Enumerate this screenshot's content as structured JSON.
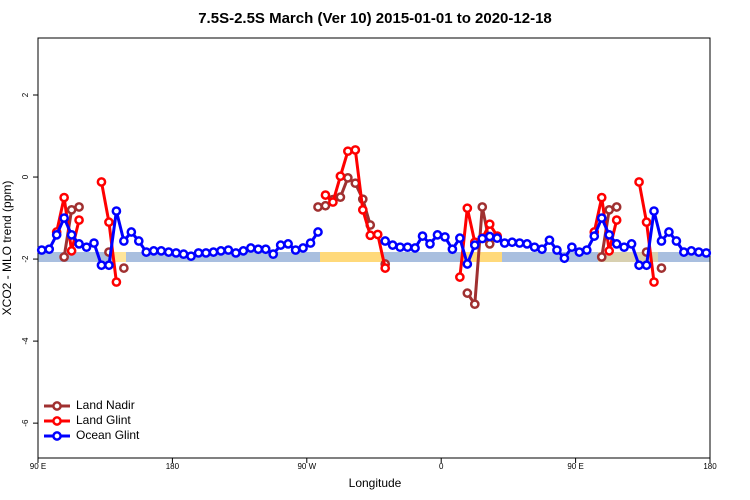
{
  "chart_data": {
    "type": "line",
    "title": "7.5S-2.5S March (Ver 10)   2015-01-01 to 2020-12-18",
    "x_label": "Longitude",
    "y_label": "XCO2 - MLO trend (ppm)",
    "x": [
      92.5,
      97.5,
      102.5,
      107.5,
      112.5,
      117.5,
      122.5,
      127.5,
      132.5,
      137.5,
      142.5,
      147.5,
      152.5,
      157.5,
      162.5,
      167.5,
      172.5,
      177.5,
      182.5,
      187.5,
      192.5,
      197.5,
      202.5,
      207.5,
      212.5,
      217.5,
      222.5,
      227.5,
      232.5,
      237.5,
      242.5,
      247.5,
      252.5,
      257.5,
      262.5,
      267.5,
      272.5,
      277.5,
      282.5,
      287.5,
      292.5,
      297.5,
      302.5,
      307.5,
      312.5,
      317.5,
      322.5,
      327.5,
      332.5,
      337.5,
      342.5,
      347.5,
      352.5,
      357.5,
      362.5,
      367.5,
      372.5,
      377.5,
      382.5,
      387.5,
      392.5,
      397.5,
      402.5,
      407.5,
      412.5,
      417.5,
      422.5,
      427.5,
      432.5,
      437.5,
      442.5,
      447.5,
      452.5,
      457.5,
      462.5,
      467.5,
      472.5,
      477.5,
      482.5,
      487.5,
      492.5,
      497.5,
      502.5,
      507.5,
      512.5,
      517.5,
      522.5,
      527.5,
      532.5,
      537.5
    ],
    "series": [
      {
        "name": "Land Nadir",
        "color": "#a03030",
        "values": [
          null,
          null,
          null,
          -1.95,
          -0.8,
          -0.73,
          null,
          null,
          null,
          -1.83,
          null,
          -2.22,
          null,
          null,
          null,
          null,
          null,
          null,
          null,
          null,
          null,
          null,
          null,
          null,
          null,
          null,
          null,
          null,
          null,
          null,
          null,
          null,
          null,
          null,
          null,
          null,
          null,
          -0.73,
          -0.7,
          -0.55,
          -0.49,
          -0.02,
          -0.15,
          -0.54,
          -1.17,
          null,
          -2.12,
          null,
          null,
          null,
          null,
          null,
          null,
          null,
          null,
          null,
          null,
          -2.83,
          -3.1,
          -0.73,
          -1.63,
          null,
          null,
          null,
          null,
          null,
          null,
          null,
          null,
          null,
          null,
          null,
          null,
          null,
          null,
          -1.95,
          -0.8,
          -0.73,
          null,
          null,
          null,
          -1.83,
          null,
          -2.22,
          null,
          null,
          null,
          null,
          null,
          null
        ]
      },
      {
        "name": "Land Glint",
        "color": "#ff0000",
        "values": [
          null,
          null,
          -1.34,
          -0.5,
          -1.8,
          -1.05,
          null,
          null,
          -0.12,
          -1.1,
          -2.56,
          null,
          null,
          null,
          null,
          null,
          null,
          null,
          null,
          null,
          null,
          null,
          null,
          null,
          null,
          null,
          null,
          null,
          null,
          null,
          null,
          null,
          null,
          null,
          null,
          null,
          null,
          null,
          -0.44,
          -0.61,
          0.02,
          0.63,
          0.66,
          -0.8,
          -1.42,
          -1.4,
          -2.22,
          null,
          null,
          null,
          null,
          null,
          null,
          null,
          null,
          null,
          -2.44,
          -0.76,
          -1.59,
          -1.49,
          -1.15,
          -1.44,
          null,
          null,
          null,
          null,
          null,
          null,
          null,
          null,
          null,
          null,
          null,
          null,
          -1.34,
          -0.5,
          -1.8,
          -1.05,
          null,
          null,
          -0.12,
          -1.1,
          -2.56,
          null,
          null,
          null,
          null,
          null,
          null,
          null
        ]
      },
      {
        "name": "Ocean Glint",
        "color": "#0000ff",
        "values": [
          -1.78,
          -1.76,
          -1.41,
          -1.0,
          -1.41,
          -1.63,
          -1.71,
          -1.61,
          -2.15,
          -2.15,
          -0.83,
          -1.56,
          -1.34,
          -1.56,
          -1.83,
          -1.8,
          -1.8,
          -1.83,
          -1.85,
          -1.88,
          -1.93,
          -1.85,
          -1.85,
          -1.83,
          -1.8,
          -1.78,
          -1.85,
          -1.8,
          -1.73,
          -1.76,
          -1.76,
          -1.88,
          -1.66,
          -1.63,
          -1.78,
          -1.73,
          -1.61,
          -1.34,
          null,
          null,
          null,
          null,
          null,
          null,
          null,
          null,
          -1.56,
          -1.66,
          -1.71,
          -1.71,
          -1.73,
          -1.44,
          -1.63,
          -1.41,
          -1.46,
          -1.76,
          -1.49,
          -2.12,
          -1.66,
          -1.5,
          -1.45,
          -1.49,
          -1.61,
          -1.59,
          -1.61,
          -1.63,
          -1.71,
          -1.76,
          -1.54,
          -1.78,
          -1.98,
          -1.71,
          -1.83,
          -1.78,
          -1.44,
          -1.0,
          -1.41,
          -1.63,
          -1.71,
          -1.63,
          -2.15,
          -2.15,
          -0.83,
          -1.56,
          -1.34,
          -1.56,
          -1.83,
          -1.8,
          -1.83,
          -1.85
        ]
      }
    ],
    "xlim": [
      90,
      540
    ],
    "xticks": [
      {
        "value": 90,
        "label": "90 E"
      },
      180,
      {
        "value": 270,
        "label": "90 W"
      },
      {
        "value": 360,
        "label": "0"
      },
      {
        "value": 450,
        "label": "90 E"
      },
      {
        "value": 540,
        "label": "180"
      }
    ],
    "ylim": [
      -6.85,
      3.39
    ],
    "yticks": [
      -6,
      -4,
      -2,
      0,
      2
    ],
    "legend": "bottom-left"
  }
}
